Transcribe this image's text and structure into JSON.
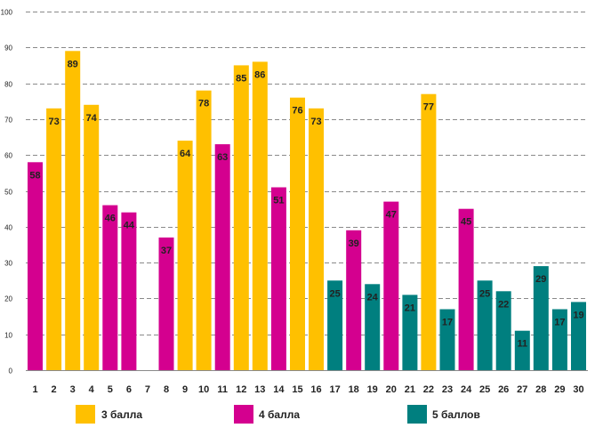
{
  "chart_data": {
    "type": "bar",
    "title": "",
    "xlabel": "",
    "ylabel": "",
    "ylim": [
      0,
      100
    ],
    "yticks": [
      0,
      10,
      20,
      30,
      40,
      50,
      60,
      70,
      80,
      90,
      100
    ],
    "grid": true,
    "legend_position": "bottom",
    "categories": [
      "1",
      "2",
      "3",
      "4",
      "5",
      "6",
      "7",
      "8",
      "9",
      "10",
      "11",
      "12",
      "13",
      "14",
      "15",
      "16",
      "17",
      "18",
      "19",
      "20",
      "21",
      "22",
      "23",
      "24",
      "25",
      "26",
      "27",
      "28",
      "29",
      "30"
    ],
    "values": [
      58,
      73,
      89,
      74,
      46,
      44,
      null,
      37,
      64,
      78,
      63,
      85,
      86,
      51,
      76,
      73,
      25,
      39,
      24,
      47,
      21,
      77,
      17,
      45,
      25,
      22,
      11,
      29,
      17,
      19
    ],
    "groups": [
      "4 балла",
      "3 балла",
      "3 балла",
      "3 балла",
      "4 балла",
      "4 балла",
      null,
      "4 балла",
      "3 балла",
      "3 балла",
      "4 балла",
      "3 балла",
      "3 балла",
      "4 балла",
      "3 балла",
      "3 балла",
      "5 баллов",
      "4 балла",
      "5 баллов",
      "4 балла",
      "5 баллов",
      "3 балла",
      "5 баллов",
      "4 балла",
      "5 баллов",
      "5 баллов",
      "5 баллов",
      "5 баллов",
      "5 баллов",
      "5 баллов"
    ],
    "legend": [
      {
        "name": "3 балла",
        "color": "#FFC000"
      },
      {
        "name": "4 балла",
        "color": "#D4008F"
      },
      {
        "name": "5 баллов",
        "color": "#007F7F"
      }
    ]
  }
}
